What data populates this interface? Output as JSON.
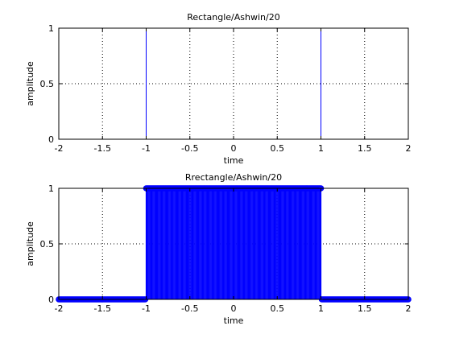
{
  "figure": {
    "background": "#ffffff",
    "axes_color": "#000000",
    "grid_color": "#000000",
    "line_color": "#0000ff"
  },
  "chart_data": [
    {
      "type": "line",
      "title": "Rectangle/Ashwin/20",
      "xlabel": "time",
      "ylabel": "amplitude",
      "xlim": [
        -2,
        2
      ],
      "ylim": [
        0,
        1
      ],
      "xticks": [
        -2,
        -1.5,
        -1,
        -0.5,
        0,
        0.5,
        1,
        1.5,
        2
      ],
      "xtick_labels": [
        "-2",
        "-1.5",
        "-1",
        "-0.5",
        "0",
        "0.5",
        "1",
        "1.5",
        "2"
      ],
      "yticks": [
        0,
        0.5,
        1
      ],
      "ytick_labels": [
        "0",
        "0.5",
        "1"
      ],
      "grid": true,
      "style": "line",
      "series": [
        {
          "x": [
            -2,
            -1,
            -1,
            1,
            1,
            2
          ],
          "y": [
            0,
            0,
            1,
            1,
            0,
            0
          ],
          "color": "#0000ff"
        }
      ]
    },
    {
      "type": "scatter",
      "title": "Rrectangle/Ashwin/20",
      "xlabel": "time",
      "ylabel": "amplitude",
      "xlim": [
        -2,
        2
      ],
      "ylim": [
        0,
        1
      ],
      "xticks": [
        -2,
        -1.5,
        -1,
        -0.5,
        0,
        0.5,
        1,
        1.5,
        2
      ],
      "xtick_labels": [
        "-2",
        "-1.5",
        "-1",
        "-0.5",
        "0",
        "0.5",
        "1",
        "1.5",
        "2"
      ],
      "yticks": [
        0,
        0.5,
        1
      ],
      "ytick_labels": [
        "0",
        "0.5",
        "1"
      ],
      "grid": true,
      "style": "stem",
      "series": [
        {
          "color": "#0000ff",
          "rule": "y = 1 for -1 <= x <= 1, else 0",
          "x_start": -2,
          "x_end": 2,
          "x_step": 0.01
        }
      ]
    }
  ]
}
